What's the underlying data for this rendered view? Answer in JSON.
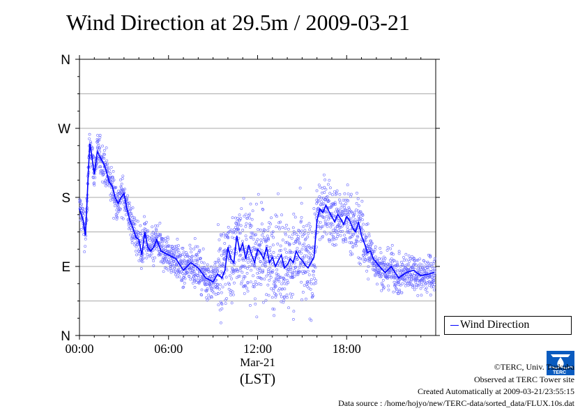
{
  "chart_data": {
    "type": "scatter",
    "title": "Wind Direction at 29.5m / 2009-03-21",
    "x_tick_labels": [
      "00:00",
      "06:00",
      "12:00",
      "18:00"
    ],
    "x_ticks_hours": [
      0,
      6,
      12,
      18
    ],
    "x_date_label": "Mar-21",
    "xlabel": "(LST)",
    "xlim_hours": [
      0,
      24
    ],
    "y_tick_labels": [
      "N",
      "E",
      "S",
      "W",
      "N"
    ],
    "y_ticks_deg": [
      0,
      90,
      180,
      270,
      360
    ],
    "ylim_deg": [
      0,
      360
    ],
    "grid": true,
    "legend": {
      "label": "Wind Direction",
      "placement": "right-bottom"
    },
    "series": [
      {
        "name": "Wind Direction",
        "style": "line",
        "color": "#0000ff",
        "hours": [
          0,
          0.25,
          0.4,
          0.5,
          0.6,
          0.7,
          0.8,
          1.0,
          1.2,
          1.4,
          1.6,
          1.8,
          2.0,
          2.2,
          2.4,
          2.6,
          2.8,
          3.0,
          3.2,
          3.4,
          3.6,
          3.8,
          4.0,
          4.2,
          4.4,
          4.6,
          4.8,
          5.0,
          5.2,
          5.5,
          6.0,
          6.5,
          7.0,
          7.5,
          8.0,
          8.5,
          9.0,
          9.3,
          9.6,
          9.8,
          10.0,
          10.2,
          10.4,
          10.6,
          10.8,
          11.0,
          11.2,
          11.4,
          11.6,
          11.8,
          12.0,
          12.2,
          12.4,
          12.6,
          12.8,
          13.0,
          13.2,
          13.4,
          13.6,
          13.8,
          14.0,
          14.2,
          14.4,
          14.6,
          14.8,
          15.0,
          15.2,
          15.4,
          15.6,
          15.8,
          16.0,
          16.2,
          16.4,
          16.6,
          16.8,
          17.0,
          17.2,
          17.4,
          17.6,
          17.8,
          18.0,
          18.2,
          18.4,
          18.6,
          18.8,
          19.0,
          19.2,
          19.4,
          19.6,
          19.8,
          20.0,
          20.3,
          20.6,
          21.0,
          21.5,
          22.0,
          22.5,
          23.0,
          23.5,
          23.9
        ],
        "deg": [
          165,
          150,
          130,
          170,
          215,
          250,
          238,
          210,
          240,
          232,
          225,
          215,
          200,
          195,
          180,
          172,
          180,
          185,
          165,
          150,
          140,
          128,
          125,
          105,
          135,
          115,
          110,
          115,
          125,
          110,
          105,
          100,
          85,
          95,
          88,
          75,
          70,
          80,
          75,
          85,
          115,
          100,
          95,
          130,
          110,
          120,
          100,
          118,
          105,
          95,
          112,
          108,
          100,
          115,
          95,
          102,
          90,
          98,
          105,
          88,
          92,
          100,
          95,
          110,
          102,
          98,
          92,
          88,
          95,
          102,
          150,
          165,
          160,
          170,
          162,
          155,
          148,
          158,
          152,
          145,
          155,
          150,
          140,
          135,
          148,
          130,
          120,
          108,
          110,
          100,
          95,
          88,
          82,
          90,
          75,
          82,
          85,
          78,
          80,
          82
        ]
      },
      {
        "name": "",
        "style": "scatter",
        "color": "#6666ff",
        "note_values": "individual 10-s samples scattered around the line"
      }
    ]
  },
  "legend_label": "Wind Direction",
  "credits": {
    "line1": "©TERC, Univ. Tsukuba",
    "line2": "Observed at TERC Tower site",
    "line3": "Created Automatically at 2009-03-21/23:55:15",
    "line4": "Data source : /home/hojyo/new/TERC-data/sorted_data/FLUX.10s.dat"
  },
  "logo_text": "TERC"
}
